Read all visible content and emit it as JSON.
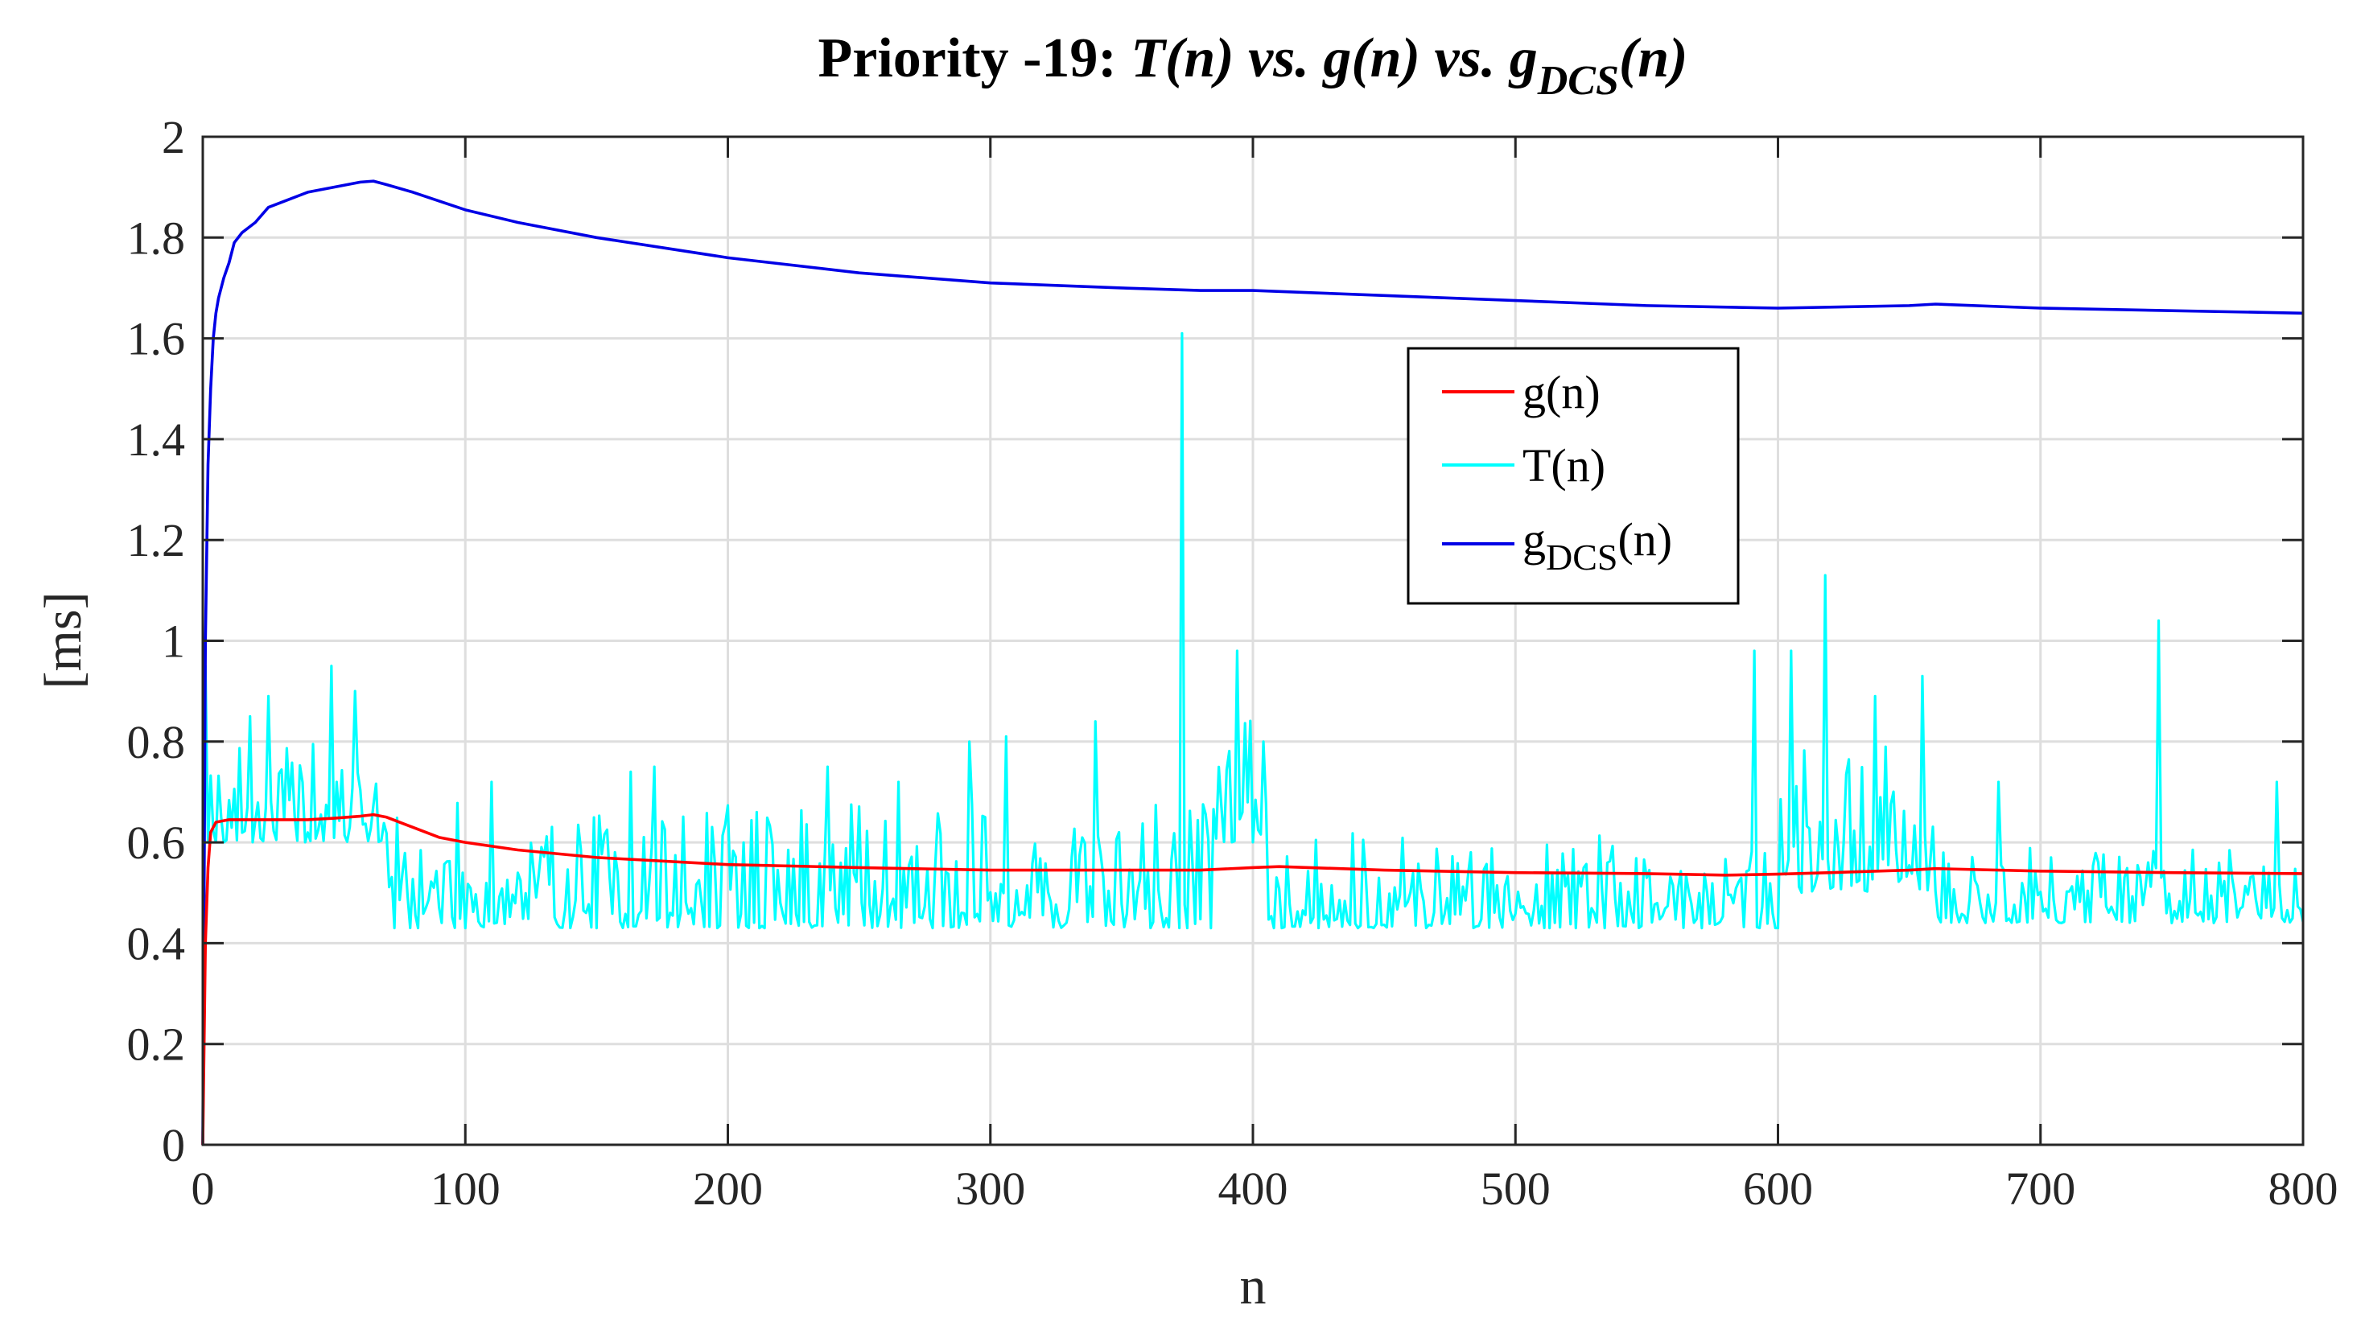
{
  "chart_data": {
    "type": "line",
    "title": {
      "prefix": "Priority -19: ",
      "t": "T(n)",
      "vs1": " vs. ",
      "g": "g(n)",
      "vs2": " vs. ",
      "gdcs_base": "g",
      "gdcs_sub": "DCS",
      "gdcs_suffix": "(n)"
    },
    "xlabel": "n",
    "ylabel": "[ms]",
    "xlim": [
      0,
      800
    ],
    "ylim": [
      0,
      2
    ],
    "xticks": [
      0,
      100,
      200,
      300,
      400,
      500,
      600,
      700,
      800
    ],
    "xtick_labels": [
      "0",
      "100",
      "200",
      "300",
      "400",
      "500",
      "600",
      "700",
      "800"
    ],
    "yticks": [
      0,
      0.2,
      0.4,
      0.6,
      0.8,
      1,
      1.2,
      1.4,
      1.6,
      1.8,
      2
    ],
    "ytick_labels": [
      "0",
      "0.2",
      "0.4",
      "0.6",
      "0.8",
      "1",
      "1.2",
      "1.4",
      "1.6",
      "1.8",
      "2"
    ],
    "grid": true,
    "legend": {
      "placement": "upper-center-right",
      "entries": [
        {
          "series": "g",
          "label": "g(n)"
        },
        {
          "series": "T",
          "label": "T(n)"
        },
        {
          "series": "gdcs",
          "label_base": "g",
          "label_sub": "DCS",
          "label_suffix": "(n)"
        }
      ]
    },
    "series": [
      {
        "id": "gdcs",
        "name": "gDCS(n)",
        "color": "#0000e6",
        "x": [
          0,
          1,
          2,
          3,
          4,
          5,
          6,
          8,
          10,
          12,
          15,
          20,
          25,
          30,
          40,
          50,
          60,
          65,
          70,
          80,
          100,
          120,
          150,
          200,
          250,
          300,
          350,
          380,
          400,
          450,
          500,
          550,
          600,
          650,
          660,
          700,
          750,
          800
        ],
        "y": [
          0.0,
          1.0,
          1.35,
          1.5,
          1.6,
          1.65,
          1.68,
          1.72,
          1.75,
          1.79,
          1.81,
          1.83,
          1.86,
          1.87,
          1.89,
          1.9,
          1.91,
          1.912,
          1.905,
          1.89,
          1.855,
          1.83,
          1.8,
          1.76,
          1.73,
          1.71,
          1.7,
          1.695,
          1.695,
          1.685,
          1.675,
          1.665,
          1.66,
          1.665,
          1.668,
          1.66,
          1.655,
          1.65
        ]
      },
      {
        "id": "g",
        "name": "g(n)",
        "color": "#ff0000",
        "x": [
          0,
          1,
          2,
          3,
          5,
          10,
          20,
          30,
          40,
          50,
          60,
          65,
          70,
          80,
          90,
          100,
          120,
          150,
          200,
          250,
          300,
          350,
          380,
          400,
          410,
          450,
          500,
          550,
          580,
          600,
          620,
          650,
          660,
          700,
          750,
          800
        ],
        "y": [
          0.0,
          0.4,
          0.55,
          0.62,
          0.64,
          0.645,
          0.645,
          0.645,
          0.645,
          0.648,
          0.652,
          0.655,
          0.65,
          0.63,
          0.61,
          0.6,
          0.585,
          0.57,
          0.556,
          0.55,
          0.545,
          0.545,
          0.545,
          0.55,
          0.552,
          0.545,
          0.54,
          0.538,
          0.535,
          0.537,
          0.54,
          0.545,
          0.548,
          0.543,
          0.54,
          0.538
        ]
      },
      {
        "id": "T",
        "name": "T(n)",
        "color": "#00ffff",
        "generated": true,
        "noise_seed": 19,
        "regimes": [
          {
            "from": 1,
            "to": 68,
            "base": 0.6,
            "amp": 0.2
          },
          {
            "from": 69,
            "to": 385,
            "base": 0.43,
            "amp": 0.25
          },
          {
            "from": 386,
            "to": 405,
            "base": 0.6,
            "amp": 0.25
          },
          {
            "from": 406,
            "to": 600,
            "base": 0.43,
            "amp": 0.2
          },
          {
            "from": 601,
            "to": 660,
            "base": 0.5,
            "amp": 0.3
          },
          {
            "from": 661,
            "to": 800,
            "base": 0.44,
            "amp": 0.15
          }
        ],
        "spikes": [
          {
            "x": 1,
            "y": 0.95
          },
          {
            "x": 18,
            "y": 0.85
          },
          {
            "x": 25,
            "y": 0.89
          },
          {
            "x": 49,
            "y": 0.95
          },
          {
            "x": 58,
            "y": 0.9
          },
          {
            "x": 110,
            "y": 0.72
          },
          {
            "x": 163,
            "y": 0.74
          },
          {
            "x": 172,
            "y": 0.75
          },
          {
            "x": 238,
            "y": 0.75
          },
          {
            "x": 265,
            "y": 0.72
          },
          {
            "x": 292,
            "y": 0.8
          },
          {
            "x": 306,
            "y": 0.81
          },
          {
            "x": 340,
            "y": 0.84
          },
          {
            "x": 373,
            "y": 1.61
          },
          {
            "x": 394,
            "y": 0.98
          },
          {
            "x": 404,
            "y": 0.8
          },
          {
            "x": 591,
            "y": 0.98
          },
          {
            "x": 605,
            "y": 0.98
          },
          {
            "x": 618,
            "y": 1.13
          },
          {
            "x": 637,
            "y": 0.89
          },
          {
            "x": 655,
            "y": 0.93
          },
          {
            "x": 684,
            "y": 0.72
          },
          {
            "x": 745,
            "y": 1.04
          },
          {
            "x": 790,
            "y": 0.72
          }
        ]
      }
    ]
  }
}
